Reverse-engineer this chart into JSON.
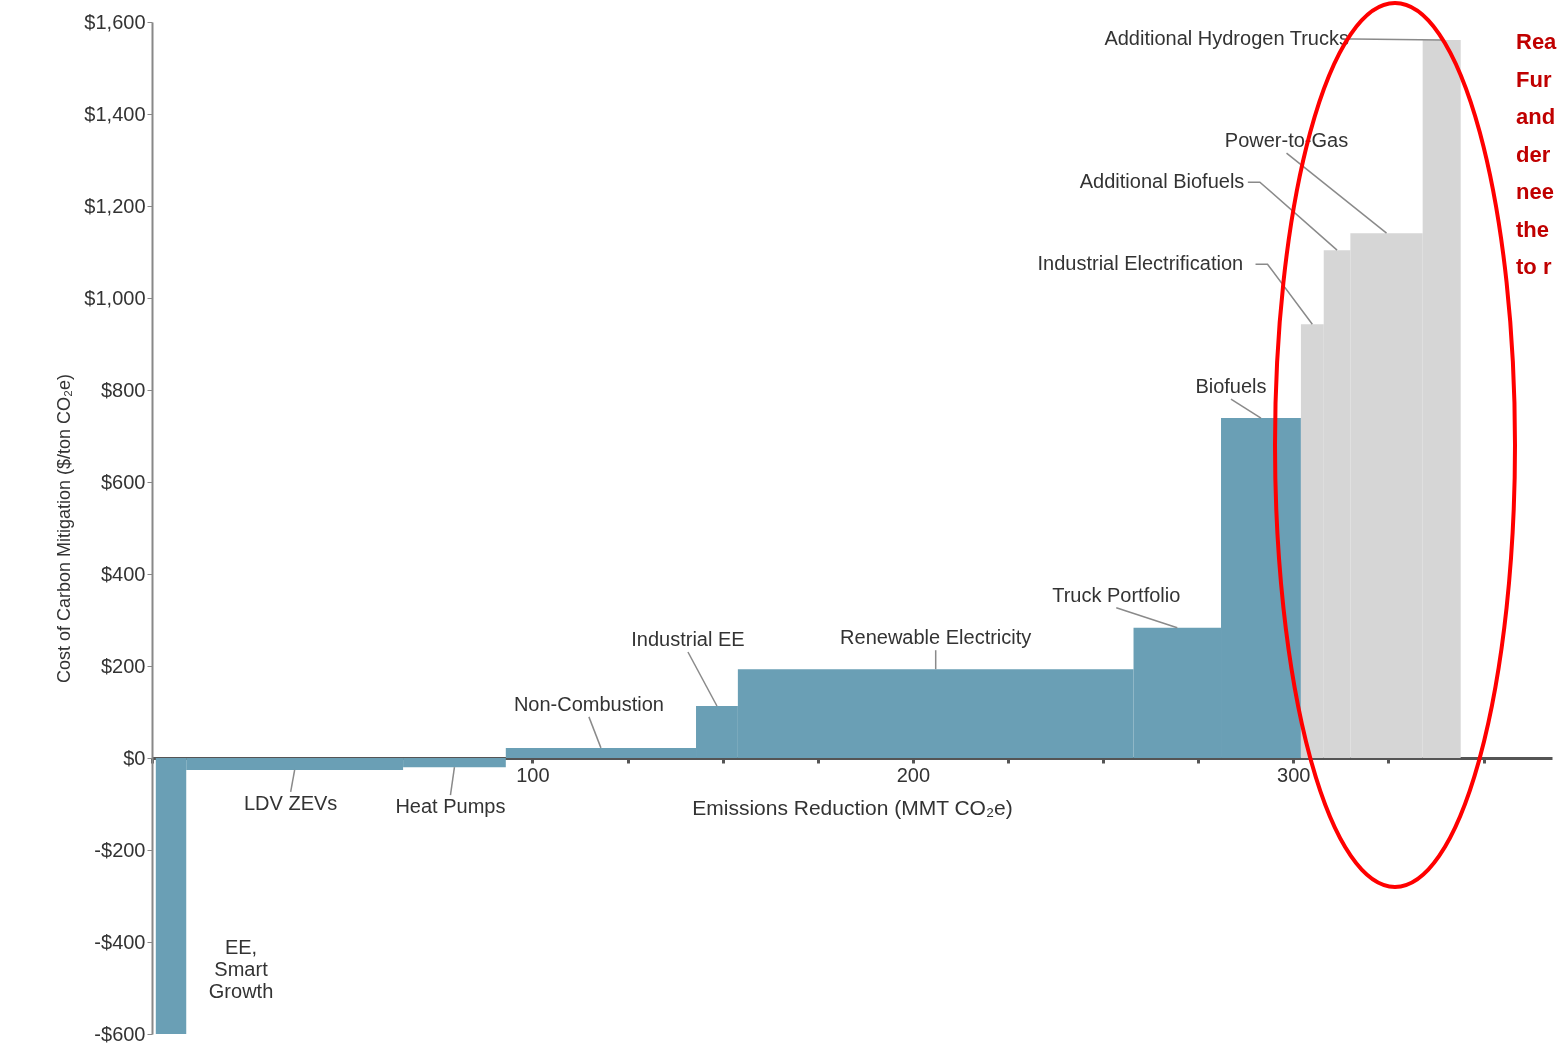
{
  "chart_data": {
    "type": "histogram",
    "bins": [
      1,
      9,
      66,
      93,
      143,
      154,
      258,
      281,
      302,
      308,
      315,
      334,
      344
    ],
    "values": [
      -600,
      -26,
      -20,
      22,
      113,
      193,
      283,
      739,
      943,
      1104,
      1141,
      1561
    ],
    "colors": [
      "#6a9fb5",
      "#6a9fb5",
      "#6a9fb5",
      "#6a9fb5",
      "#6a9fb5",
      "#6a9fb5",
      "#6a9fb5",
      "#6a9fb5",
      "#d6d6d6",
      "#d6d6d6",
      "#d6d6d6",
      "#d6d6d6"
    ],
    "xlabel": "Emissions Reduction (MMT CO₂e)",
    "ylabel": "Cost of Carbon Mitigation ($/ton CO₂e)",
    "xlim": [
      0,
      368
    ],
    "xticks": [
      {
        "value": 0,
        "label": null
      },
      {
        "value": 25,
        "label": null
      },
      {
        "value": 50,
        "label": null
      },
      {
        "value": 75,
        "label": null
      },
      100,
      {
        "value": 125,
        "label": null
      },
      {
        "value": 150,
        "label": null
      },
      {
        "value": 175,
        "label": null
      },
      200,
      {
        "value": 225,
        "label": null
      },
      {
        "value": 250,
        "label": null
      },
      {
        "value": 275,
        "label": null
      },
      300,
      {
        "value": 325,
        "label": null
      },
      {
        "value": 350,
        "label": null
      }
    ],
    "ylim": [
      -600,
      1600
    ],
    "yticks": [
      {
        "value": -600,
        "label": "-$600"
      },
      {
        "value": -400,
        "label": "-$400"
      },
      {
        "value": -200,
        "label": "-$200"
      },
      {
        "value": 0,
        "label": "$0"
      },
      {
        "value": 200,
        "label": "$200"
      },
      {
        "value": 400,
        "label": "$400"
      },
      {
        "value": 600,
        "label": "$600"
      },
      {
        "value": 800,
        "label": "$800"
      },
      {
        "value": 1000,
        "label": "$1,000"
      },
      {
        "value": 1200,
        "label": "$1,200"
      },
      {
        "value": 1400,
        "label": "$1,400"
      },
      {
        "value": 1600,
        "label": "$1,600"
      }
    ],
    "grid": false,
    "annotations": [
      {
        "text": "EE,\nSmart\nGrowth",
        "x": 5,
        "y": -600
      },
      {
        "text": "LDV ZEVs",
        "x": 37.5,
        "y": -26
      },
      {
        "text": "Heat Pumps",
        "x": 79.5,
        "y": -20
      },
      {
        "text": "Non-Combustion",
        "x": 118,
        "y": 22
      },
      {
        "text": "Industrial EE",
        "x": 148.5,
        "y": 113
      },
      {
        "text": "Renewable Electricity",
        "x": 206,
        "y": 193
      },
      {
        "text": "Truck Portfolio",
        "x": 269.5,
        "y": 283
      },
      {
        "text": "Biofuels",
        "x": 291.5,
        "y": 739
      },
      {
        "text": "Industrial Electrification",
        "x": 305,
        "y": 943
      },
      {
        "text": "Additional Biofuels",
        "x": 311.5,
        "y": 1104
      },
      {
        "text": "Power-to-Gas",
        "x": 324.5,
        "y": 1141
      },
      {
        "text": "Additional Hydrogen Trucks",
        "x": 339,
        "y": 1561
      },
      "Rea\nFur\nand\nder\nnee\nthe\nto r"
    ]
  }
}
